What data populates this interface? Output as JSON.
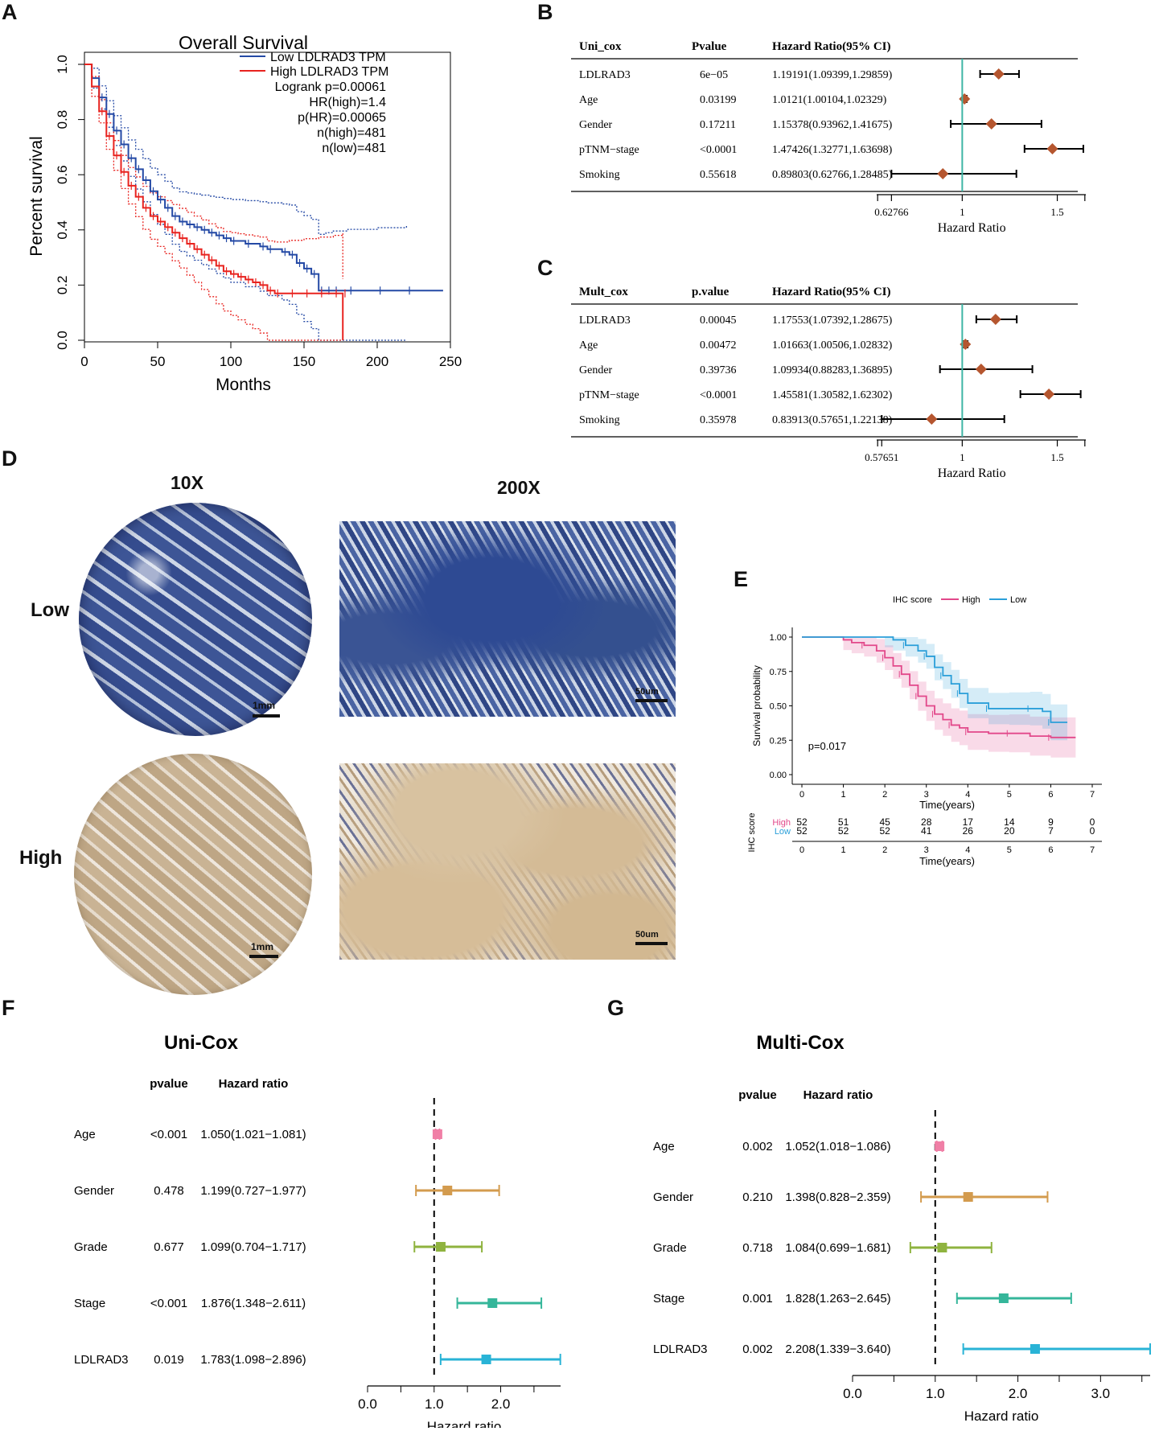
{
  "panel_letters": {
    "A": "A",
    "B": "B",
    "C": "C",
    "D": "D",
    "E": "E",
    "F": "F",
    "G": "G"
  },
  "colors": {
    "blue": "#2449a5",
    "red": "#e8231f",
    "teal": "#3fb5a5",
    "diamond": "#b5562f",
    "pink": "#e2488a",
    "lightblue": "#2b9fd9"
  },
  "chart_data": [
    {
      "type": "line",
      "id": "A",
      "title": "Overall Survival",
      "xlabel": "Months",
      "ylabel": "Percent survival",
      "xlim": [
        0,
        250
      ],
      "ylim": [
        0,
        1.0
      ],
      "xticks": [
        "0",
        "50",
        "100",
        "150",
        "200",
        "250"
      ],
      "yticks": [
        "0.0",
        "0.2",
        "0.4",
        "0.6",
        "0.8",
        "1.0"
      ],
      "legend": {
        "low": "Low LDLRAD3 TPM",
        "high": "High LDLRAD3 TPM",
        "stats": [
          "Logrank p=0.00061",
          "HR(high)=1.4",
          "p(HR)=0.00065",
          "n(high)=481",
          "n(low)=481"
        ]
      },
      "series": [
        {
          "name": "Low LDLRAD3 TPM",
          "color": "#2449a5",
          "x": [
            0,
            5,
            10,
            15,
            20,
            25,
            30,
            35,
            40,
            45,
            50,
            55,
            60,
            65,
            70,
            75,
            80,
            85,
            90,
            95,
            100,
            110,
            120,
            125,
            135,
            140,
            145,
            150,
            155,
            160,
            165,
            170,
            180,
            200,
            220,
            245
          ],
          "y": [
            1.0,
            0.95,
            0.88,
            0.82,
            0.76,
            0.71,
            0.66,
            0.62,
            0.58,
            0.54,
            0.51,
            0.48,
            0.45,
            0.43,
            0.42,
            0.41,
            0.4,
            0.39,
            0.38,
            0.37,
            0.36,
            0.35,
            0.34,
            0.33,
            0.32,
            0.31,
            0.28,
            0.26,
            0.24,
            0.18,
            0.18,
            0.18,
            0.18,
            0.18,
            0.18,
            0.18
          ]
        },
        {
          "name": "High LDLRAD3 TPM",
          "color": "#e8231f",
          "x": [
            0,
            5,
            10,
            15,
            20,
            25,
            30,
            35,
            40,
            45,
            50,
            55,
            60,
            65,
            70,
            75,
            80,
            85,
            90,
            95,
            100,
            105,
            110,
            115,
            120,
            125,
            130,
            140,
            150,
            160,
            170,
            176,
            176.5
          ],
          "y": [
            1.0,
            0.92,
            0.83,
            0.74,
            0.67,
            0.61,
            0.56,
            0.52,
            0.48,
            0.45,
            0.43,
            0.41,
            0.39,
            0.37,
            0.35,
            0.33,
            0.31,
            0.29,
            0.27,
            0.25,
            0.24,
            0.23,
            0.22,
            0.21,
            0.2,
            0.18,
            0.17,
            0.17,
            0.17,
            0.17,
            0.17,
            0.17,
            0.0
          ]
        }
      ]
    },
    {
      "type": "forest",
      "id": "B",
      "headers": [
        "Uni_cox",
        "Pvalue",
        "Hazard Ratio(95% CI)"
      ],
      "xlabel": "Hazard Ratio",
      "xticks": [
        "0.62766",
        "1",
        "1.5"
      ],
      "xlim": [
        0.55,
        1.65
      ],
      "rows": [
        {
          "name": "LDLRAD3",
          "p": "6e−05",
          "hr_text": "1.19191(1.09399,1.29859)",
          "hr": 1.19191,
          "lo": 1.09399,
          "hi": 1.29859
        },
        {
          "name": "Age",
          "p": "0.03199",
          "hr_text": "1.0121(1.00104,1.02329)",
          "hr": 1.0121,
          "lo": 1.00104,
          "hi": 1.02329
        },
        {
          "name": "Gender",
          "p": "0.17211",
          "hr_text": "1.15378(0.93962,1.41675)",
          "hr": 1.15378,
          "lo": 0.93962,
          "hi": 1.41675
        },
        {
          "name": "pTNM−stage",
          "p": "<0.0001",
          "hr_text": "1.47426(1.32771,1.63698)",
          "hr": 1.47426,
          "lo": 1.32771,
          "hi": 1.63698
        },
        {
          "name": "Smoking",
          "p": "0.55618",
          "hr_text": "0.89803(0.62766,1.28485)",
          "hr": 0.89803,
          "lo": 0.62766,
          "hi": 1.28485
        }
      ]
    },
    {
      "type": "forest",
      "id": "C",
      "headers": [
        "Mult_cox",
        "p.value",
        "Hazard Ratio(95% CI)"
      ],
      "xlabel": "Hazard Ratio",
      "xticks": [
        "0.57651",
        "1",
        "1.5"
      ],
      "xlim": [
        0.55,
        1.65
      ],
      "rows": [
        {
          "name": "LDLRAD3",
          "p": "0.00045",
          "hr_text": "1.17553(1.07392,1.28675)",
          "hr": 1.17553,
          "lo": 1.07392,
          "hi": 1.28675
        },
        {
          "name": "Age",
          "p": "0.00472",
          "hr_text": "1.01663(1.00506,1.02832)",
          "hr": 1.01663,
          "lo": 1.00506,
          "hi": 1.02832
        },
        {
          "name": "Gender",
          "p": "0.39736",
          "hr_text": "1.09934(0.88283,1.36895)",
          "hr": 1.09934,
          "lo": 0.88283,
          "hi": 1.36895
        },
        {
          "name": "pTNM−stage",
          "p": "<0.0001",
          "hr_text": "1.45581(1.30582,1.62302)",
          "hr": 1.45581,
          "lo": 1.30582,
          "hi": 1.62302
        },
        {
          "name": "Smoking",
          "p": "0.35978",
          "hr_text": "0.83913(0.57651,1.22138)",
          "hr": 0.83913,
          "lo": 0.57651,
          "hi": 1.22138
        }
      ]
    },
    {
      "type": "line",
      "id": "E",
      "legend_title": "IHC score",
      "legend": [
        "High",
        "Low"
      ],
      "xlabel": "Time(years)",
      "ylabel": "Survival probability",
      "xticks": [
        "0",
        "1",
        "2",
        "3",
        "4",
        "5",
        "6",
        "7"
      ],
      "yticks": [
        "0.00",
        "0.25",
        "0.50",
        "0.75",
        "1.00"
      ],
      "xlim": [
        0,
        7
      ],
      "ylim": [
        0,
        1
      ],
      "pvalue": "p=0.017",
      "series": [
        {
          "name": "High",
          "color": "#e2488a",
          "x": [
            0,
            1,
            1.2,
            1.5,
            1.8,
            2.0,
            2.2,
            2.4,
            2.6,
            2.8,
            3.0,
            3.2,
            3.4,
            3.6,
            3.8,
            4.0,
            4.5,
            5.0,
            5.5,
            6.0,
            6.6
          ],
          "y": [
            1.0,
            0.98,
            0.96,
            0.94,
            0.9,
            0.85,
            0.79,
            0.73,
            0.65,
            0.57,
            0.5,
            0.44,
            0.4,
            0.36,
            0.34,
            0.31,
            0.3,
            0.3,
            0.28,
            0.27,
            0.27
          ]
        },
        {
          "name": "Low",
          "color": "#2b9fd9",
          "x": [
            0,
            2.0,
            2.2,
            2.5,
            2.8,
            3.0,
            3.2,
            3.4,
            3.6,
            3.8,
            4.0,
            4.5,
            5.0,
            5.5,
            5.8,
            6.0,
            6.4
          ],
          "y": [
            1.0,
            1.0,
            0.98,
            0.94,
            0.9,
            0.86,
            0.78,
            0.72,
            0.66,
            0.59,
            0.52,
            0.48,
            0.48,
            0.48,
            0.46,
            0.38,
            0.38
          ]
        }
      ],
      "risk_table": {
        "title": "IHC score",
        "rows": [
          {
            "name": "High",
            "values": [
              "52",
              "51",
              "45",
              "28",
              "17",
              "14",
              "9",
              "0"
            ]
          },
          {
            "name": "Low",
            "values": [
              "52",
              "52",
              "52",
              "41",
              "26",
              "20",
              "7",
              "0"
            ]
          }
        ],
        "xticks": [
          "0",
          "1",
          "2",
          "3",
          "4",
          "5",
          "6",
          "7"
        ],
        "xlabel": "Time(years)"
      }
    },
    {
      "type": "forest",
      "id": "F",
      "title": "Uni-Cox",
      "headers": [
        "pvalue",
        "Hazard ratio"
      ],
      "xlabel": "Hazard ratio",
      "xticks": [
        "0.0",
        "1.0",
        "2.0"
      ],
      "xlim": [
        0,
        2.9
      ],
      "rows": [
        {
          "name": "Age",
          "p": "<0.001",
          "hr_text": "1.050(1.021−1.081)",
          "hr": 1.05,
          "lo": 1.021,
          "hi": 1.081,
          "color": "#f07fa6"
        },
        {
          "name": "Gender",
          "p": "0.478",
          "hr_text": "1.199(0.727−1.977)",
          "hr": 1.199,
          "lo": 0.727,
          "hi": 1.977,
          "color": "#d39b4e"
        },
        {
          "name": "Grade",
          "p": "0.677",
          "hr_text": "1.099(0.704−1.717)",
          "hr": 1.099,
          "lo": 0.704,
          "hi": 1.717,
          "color": "#8fb33f"
        },
        {
          "name": "Stage",
          "p": "<0.001",
          "hr_text": "1.876(1.348−2.611)",
          "hr": 1.876,
          "lo": 1.348,
          "hi": 2.611,
          "color": "#35b69a"
        },
        {
          "name": "LDLRAD3",
          "p": "0.019",
          "hr_text": "1.783(1.098−2.896)",
          "hr": 1.783,
          "lo": 1.098,
          "hi": 2.896,
          "color": "#29b3d6"
        }
      ]
    },
    {
      "type": "forest",
      "id": "G",
      "title": "Multi-Cox",
      "headers": [
        "pvalue",
        "Hazard ratio"
      ],
      "xlabel": "Hazard ratio",
      "xticks": [
        "0.0",
        "1.0",
        "2.0",
        "3.0"
      ],
      "xlim": [
        0,
        3.6
      ],
      "rows": [
        {
          "name": "Age",
          "p": "0.002",
          "hr_text": "1.052(1.018−1.086)",
          "hr": 1.052,
          "lo": 1.018,
          "hi": 1.086,
          "color": "#f07fa6"
        },
        {
          "name": "Gender",
          "p": "0.210",
          "hr_text": "1.398(0.828−2.359)",
          "hr": 1.398,
          "lo": 0.828,
          "hi": 2.359,
          "color": "#d39b4e"
        },
        {
          "name": "Grade",
          "p": "0.718",
          "hr_text": "1.084(0.699−1.681)",
          "hr": 1.084,
          "lo": 0.699,
          "hi": 1.681,
          "color": "#8fb33f"
        },
        {
          "name": "Stage",
          "p": "0.001",
          "hr_text": "1.828(1.263−2.645)",
          "hr": 1.828,
          "lo": 1.263,
          "hi": 2.645,
          "color": "#35b69a"
        },
        {
          "name": "LDLRAD3",
          "p": "0.002",
          "hr_text": "2.208(1.339−3.640)",
          "hr": 2.208,
          "lo": 1.339,
          "hi": 3.64,
          "color": "#29b3d6"
        }
      ]
    }
  ],
  "panel_d": {
    "col_10x": "10X",
    "col_200x": "200X",
    "row_low": "Low",
    "row_high": "High",
    "scale_1mm": "1mm",
    "scale_50um": "50um"
  }
}
